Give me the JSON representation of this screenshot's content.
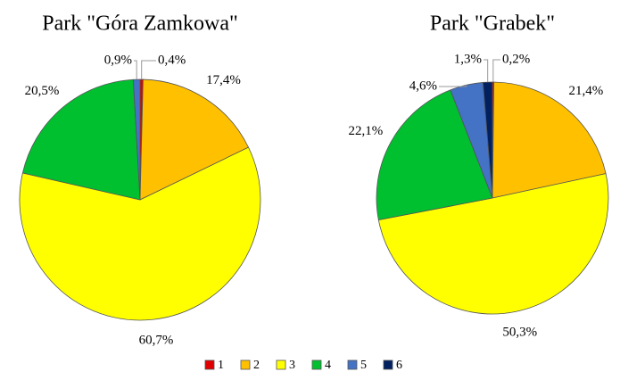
{
  "chart_data": [
    {
      "type": "pie",
      "title": "Park \"Góra Zamkowa\"",
      "values": [
        0.4,
        17.4,
        60.7,
        20.5,
        0.9
      ],
      "value_labels": [
        "0,4%",
        "17,4%",
        "60,7%",
        "20,5%",
        "0,9%"
      ]
    },
    {
      "type": "pie",
      "title": "Park \"Grabek\"",
      "values": [
        0.2,
        21.4,
        50.3,
        22.1,
        4.6,
        1.3
      ],
      "value_labels": [
        "0,2%",
        "21,4%",
        "50,3%",
        "22,1%",
        "4,6%",
        "1,3%"
      ]
    }
  ],
  "legend": {
    "categories": [
      "1",
      "2",
      "3",
      "4",
      "5",
      "6"
    ],
    "colors": [
      "#e00000",
      "#ffc000",
      "#ffff00",
      "#00c030",
      "#4472c4",
      "#002060"
    ]
  }
}
